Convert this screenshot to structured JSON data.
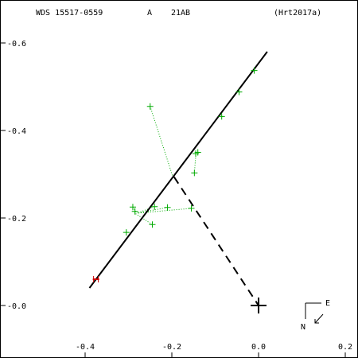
{
  "header": {
    "wds": "WDS 15517-0559",
    "component": "A",
    "disc": "21AB",
    "ref": "(Hrt2017a)"
  },
  "compass": {
    "east": "E",
    "north": "N"
  },
  "colors": {
    "obs": "#00aa00",
    "resid": "#00aa00",
    "orbit": "#000000",
    "first_obs": "#cc0000",
    "dash": "#000000"
  },
  "chart_data": {
    "type": "scatter",
    "title": "",
    "xlabel": "",
    "ylabel": "",
    "xlim": [
      -0.58,
      0.22
    ],
    "ylim": [
      -0.12,
      0.69
    ],
    "x_invert": false,
    "x_ticks": [
      -0.4,
      -0.2,
      0.0,
      0.2
    ],
    "x_tick_labels": [
      "-0.4",
      "-0.2",
      "0.0",
      "0.2"
    ],
    "y_ticks": [
      0.0,
      0.2,
      0.4,
      0.6
    ],
    "y_tick_labels": [
      "-0.0",
      "-0.2",
      "-0.4",
      "-0.6"
    ],
    "grid": false,
    "orbit_line": {
      "x": [
        -0.39,
        0.02
      ],
      "y": [
        0.04,
        0.58
      ]
    },
    "periastron_dash": {
      "x": [
        -0.195,
        0.0
      ],
      "y": [
        0.294,
        0.0
      ]
    },
    "primary": {
      "x": 0.0,
      "y": 0.0
    },
    "first_observation": {
      "x": -0.375,
      "y": 0.06
    },
    "observations": [
      {
        "x": -0.25,
        "y": 0.455,
        "fx": -0.198,
        "fy": 0.295
      },
      {
        "x": -0.01,
        "y": 0.537,
        "fx": -0.005,
        "fy": 0.535
      },
      {
        "x": -0.045,
        "y": 0.488,
        "fx": -0.043,
        "fy": 0.486
      },
      {
        "x": -0.085,
        "y": 0.432,
        "fx": -0.082,
        "fy": 0.43
      },
      {
        "x": -0.14,
        "y": 0.35,
        "fx": -0.137,
        "fy": 0.351
      },
      {
        "x": -0.145,
        "y": 0.347,
        "fx": -0.142,
        "fy": 0.345
      },
      {
        "x": -0.148,
        "y": 0.303,
        "fx": -0.145,
        "fy": 0.34
      },
      {
        "x": -0.155,
        "y": 0.222,
        "fx": -0.28,
        "fy": 0.211
      },
      {
        "x": -0.21,
        "y": 0.224,
        "fx": -0.28,
        "fy": 0.211
      },
      {
        "x": -0.24,
        "y": 0.226,
        "fx": -0.28,
        "fy": 0.211
      },
      {
        "x": -0.29,
        "y": 0.225,
        "fx": -0.28,
        "fy": 0.211
      },
      {
        "x": -0.285,
        "y": 0.215,
        "fx": -0.281,
        "fy": 0.212
      },
      {
        "x": -0.245,
        "y": 0.185,
        "fx": -0.284,
        "fy": 0.21
      },
      {
        "x": -0.305,
        "y": 0.167,
        "fx": -0.302,
        "fy": 0.171
      }
    ]
  }
}
